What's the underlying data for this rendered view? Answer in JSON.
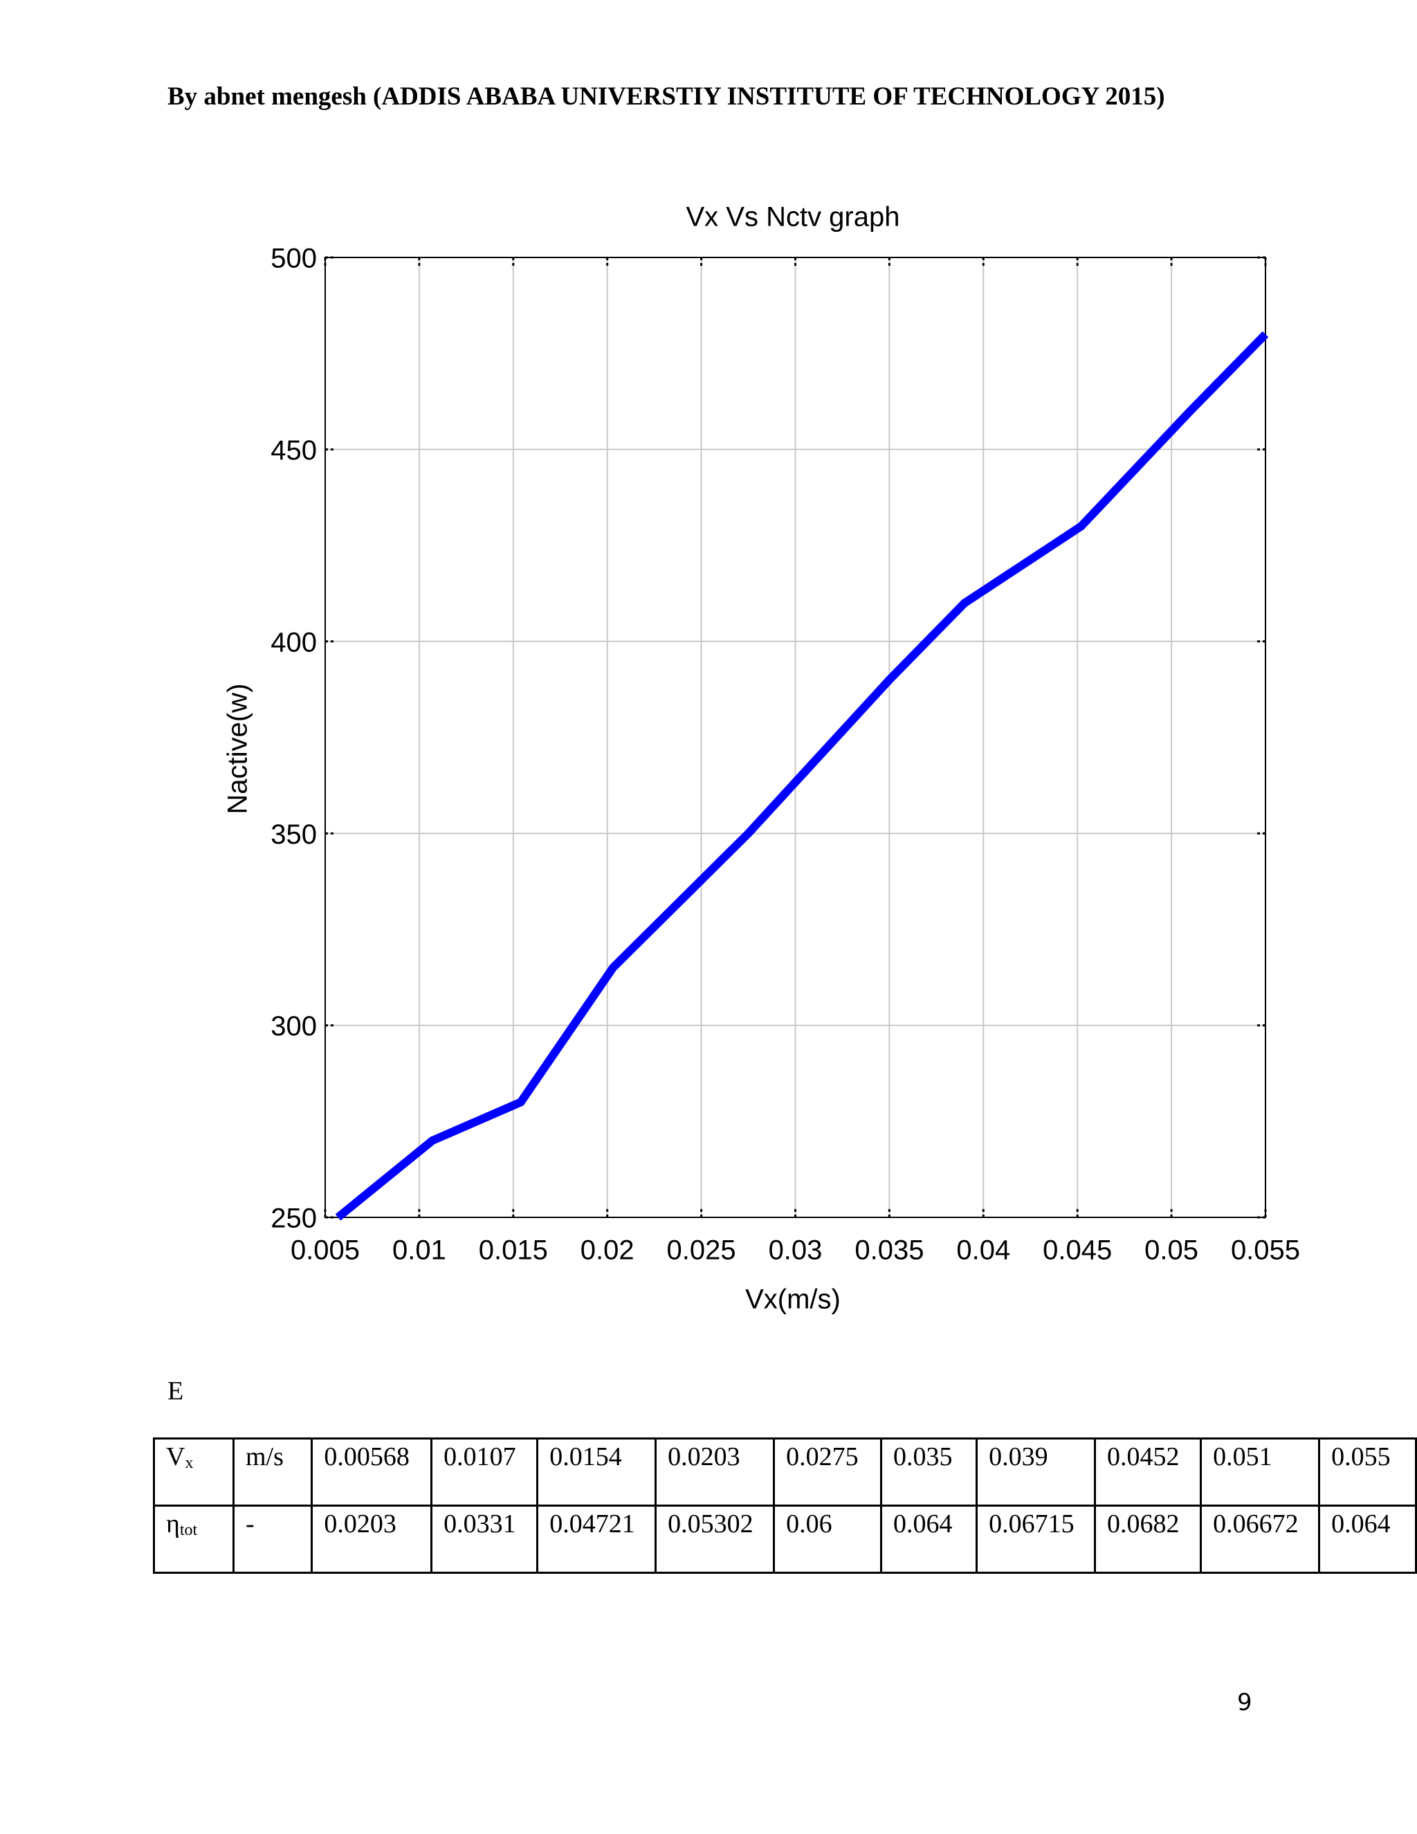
{
  "header": "By abnet mengesh (ADDIS ABABA UNIVERSTIY INSTITUTE OF TECHNOLOGY 2015)",
  "chart_data": {
    "type": "line",
    "title": "Vx Vs Nctv graph",
    "x_label": "Vx(m/s)",
    "y_label": "Nactive(w)",
    "x": [
      0.00568,
      0.0107,
      0.0154,
      0.0203,
      0.0275,
      0.035,
      0.039,
      0.0452,
      0.051,
      0.055
    ],
    "values": [
      250,
      270,
      280,
      315,
      350,
      390,
      410,
      430,
      460,
      480
    ],
    "color": "#0000ff",
    "xlim": [
      0.005,
      0.055
    ],
    "xticks": [
      0.005,
      0.01,
      0.015,
      0.02,
      0.025,
      0.03,
      0.035,
      0.04,
      0.045,
      0.05,
      0.055
    ],
    "ylim": [
      250,
      500
    ],
    "yticks": [
      250,
      300,
      350,
      400,
      450,
      500
    ],
    "grid": true
  },
  "section_label": "E",
  "table": {
    "rows": [
      [
        {
          "symbol": "V",
          "subscript": "x"
        },
        "m/s",
        "0.00568",
        "0.0107",
        "0.0154",
        "0.0203",
        "0.0275",
        "0.035",
        "0.039",
        "0.0452",
        "0.051",
        "0.055"
      ],
      [
        {
          "symbol": "η",
          "subscript": "tot"
        },
        "-",
        "0.0203",
        "0.0331",
        "0.04721",
        "0.05302",
        "0.06",
        "0.064",
        "0.06715",
        "0.0682",
        "0.06672",
        "0.064"
      ]
    ]
  },
  "page_number": "9"
}
